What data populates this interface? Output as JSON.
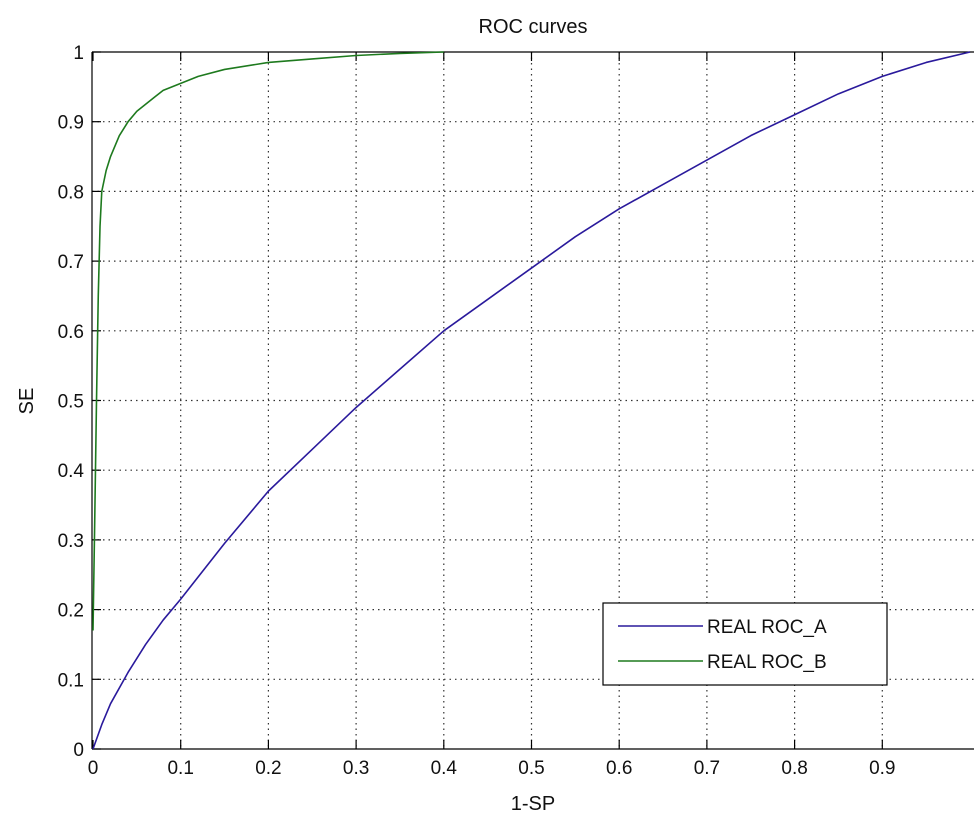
{
  "chart_data": {
    "type": "line",
    "title": "ROC curves",
    "xlabel": "1-SP",
    "ylabel": "SE",
    "xlim": [
      0,
      1
    ],
    "ylim": [
      0,
      1
    ],
    "x_ticks": [
      "0",
      "0.1",
      "0.2",
      "0.3",
      "0.4",
      "0.5",
      "0.6",
      "0.7",
      "0.8",
      "0.9"
    ],
    "y_ticks": [
      "0",
      "0.1",
      "0.2",
      "0.3",
      "0.4",
      "0.5",
      "0.6",
      "0.7",
      "0.8",
      "0.9",
      "1"
    ],
    "grid": true,
    "legend_position": "bottom-right",
    "series": [
      {
        "name": "REAL ROC_A",
        "color": "#2a1a9c",
        "x": [
          0,
          0.01,
          0.02,
          0.04,
          0.06,
          0.08,
          0.1,
          0.15,
          0.2,
          0.25,
          0.3,
          0.35,
          0.4,
          0.45,
          0.5,
          0.55,
          0.6,
          0.65,
          0.7,
          0.75,
          0.8,
          0.85,
          0.9,
          0.95,
          1.0
        ],
        "y": [
          0,
          0.035,
          0.065,
          0.11,
          0.15,
          0.185,
          0.215,
          0.295,
          0.37,
          0.43,
          0.49,
          0.545,
          0.6,
          0.645,
          0.69,
          0.735,
          0.775,
          0.81,
          0.845,
          0.88,
          0.91,
          0.94,
          0.965,
          0.985,
          1.0
        ]
      },
      {
        "name": "REAL ROC_B",
        "color": "#1e7a1e",
        "x": [
          0,
          0.002,
          0.004,
          0.006,
          0.008,
          0.01,
          0.015,
          0.02,
          0.03,
          0.04,
          0.05,
          0.06,
          0.07,
          0.08,
          0.1,
          0.12,
          0.15,
          0.2,
          0.25,
          0.3,
          0.35,
          0.4
        ],
        "y": [
          0.17,
          0.33,
          0.5,
          0.65,
          0.75,
          0.8,
          0.83,
          0.85,
          0.88,
          0.9,
          0.915,
          0.925,
          0.935,
          0.945,
          0.955,
          0.965,
          0.975,
          0.985,
          0.99,
          0.995,
          0.998,
          1.0
        ]
      }
    ]
  }
}
